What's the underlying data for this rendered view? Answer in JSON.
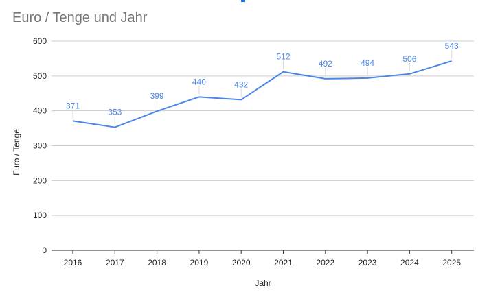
{
  "chart_data": {
    "type": "line",
    "title": "Euro / Tenge und Jahr",
    "xlabel": "Jahr",
    "ylabel": "Euro / Tenge",
    "categories": [
      "2016",
      "2017",
      "2018",
      "2019",
      "2020",
      "2021",
      "2022",
      "2023",
      "2024",
      "2025"
    ],
    "series": [
      {
        "values": [
          371,
          353,
          399,
          440,
          432,
          512,
          492,
          494,
          506,
          543
        ],
        "color": "#4a86e8"
      }
    ],
    "ylim": [
      0,
      600
    ],
    "yticks": [
      "0",
      "100",
      "200",
      "300",
      "400",
      "500",
      "600"
    ],
    "grid": true,
    "data_labels": true
  }
}
